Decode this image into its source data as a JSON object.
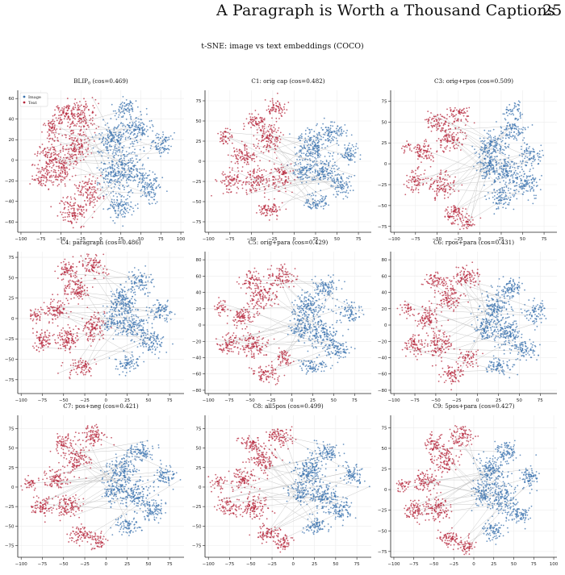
{
  "header": {
    "title": "A Paragraph is Worth a Thousand Captions",
    "page_number": "25"
  },
  "figure": {
    "title": "t-SNE: image vs text embeddings (COCO)"
  },
  "legend": {
    "image_label": "Image",
    "text_label": "Text"
  },
  "colors": {
    "image": "#3a72ad",
    "text": "#b5253b",
    "link": "#bdbdbd",
    "grid": "#ececec",
    "axis": "#222222"
  },
  "chart_data": [
    {
      "type": "scatter",
      "title_main": "BLIP",
      "title_sub": "0",
      "title_rest": " (cos=0.469)",
      "xticks": [
        -100,
        -75,
        -50,
        -25,
        0,
        25,
        50,
        75,
        100
      ],
      "yticks": [
        -60,
        -40,
        -20,
        0,
        20,
        40,
        60
      ],
      "xlim": [
        -104,
        104
      ],
      "ylim": [
        -70,
        68
      ],
      "legend": true,
      "clusters": {
        "text": [
          [
            -65,
            5,
            14,
            12
          ],
          [
            -75,
            -15,
            12,
            10
          ],
          [
            -50,
            -10,
            16,
            14
          ],
          [
            -30,
            15,
            16,
            16
          ],
          [
            -25,
            45,
            16,
            14
          ],
          [
            -45,
            45,
            14,
            10
          ],
          [
            -35,
            -50,
            18,
            12
          ],
          [
            -15,
            -30,
            14,
            14
          ],
          [
            -60,
            30,
            12,
            10
          ]
        ],
        "image": [
          [
            15,
            20,
            18,
            18
          ],
          [
            35,
            -10,
            18,
            18
          ],
          [
            45,
            30,
            16,
            14
          ],
          [
            60,
            -25,
            14,
            14
          ],
          [
            25,
            -45,
            16,
            12
          ],
          [
            75,
            15,
            12,
            12
          ],
          [
            15,
            -15,
            14,
            14
          ],
          [
            30,
            50,
            14,
            8
          ]
        ]
      }
    },
    {
      "type": "scatter",
      "title_main": "C1: orig cap (cos=0.482)",
      "title_sub": "",
      "title_rest": "",
      "xticks": [
        -100,
        -75,
        -50,
        -25,
        0,
        25,
        50,
        75
      ],
      "yticks": [
        -75,
        -50,
        -25,
        0,
        25,
        50,
        75
      ],
      "xlim": [
        -104,
        90
      ],
      "ylim": [
        -88,
        88
      ],
      "legend": false,
      "clusters": {
        "text": [
          [
            -60,
            5,
            14,
            12
          ],
          [
            -75,
            -25,
            12,
            12
          ],
          [
            -45,
            -25,
            14,
            14
          ],
          [
            -30,
            30,
            14,
            16
          ],
          [
            -20,
            65,
            12,
            10
          ],
          [
            -45,
            50,
            12,
            10
          ],
          [
            -30,
            -60,
            14,
            10
          ],
          [
            -15,
            -20,
            12,
            14
          ],
          [
            -80,
            30,
            8,
            10
          ]
        ],
        "image": [
          [
            20,
            20,
            16,
            18
          ],
          [
            35,
            -10,
            16,
            16
          ],
          [
            45,
            35,
            14,
            12
          ],
          [
            55,
            -30,
            12,
            12
          ],
          [
            25,
            -50,
            14,
            10
          ],
          [
            65,
            10,
            10,
            12
          ],
          [
            10,
            -10,
            12,
            14
          ]
        ]
      }
    },
    {
      "type": "scatter",
      "title_main": "C3: orig+rpos (cos=0.509)",
      "title_sub": "",
      "title_rest": "",
      "xticks": [
        -100,
        -75,
        -50,
        -25,
        0,
        25,
        50,
        75
      ],
      "yticks": [
        -75,
        -50,
        -25,
        0,
        25,
        50,
        75
      ],
      "xlim": [
        -104,
        90
      ],
      "ylim": [
        -82,
        88
      ],
      "legend": false,
      "clusters": {
        "text": [
          [
            -65,
            15,
            12,
            12
          ],
          [
            -75,
            -20,
            10,
            12
          ],
          [
            -45,
            -25,
            14,
            14
          ],
          [
            -35,
            30,
            14,
            14
          ],
          [
            -25,
            60,
            12,
            10
          ],
          [
            -50,
            50,
            12,
            10
          ],
          [
            -30,
            -60,
            14,
            10
          ],
          [
            -15,
            -70,
            10,
            8
          ],
          [
            -85,
            20,
            6,
            6
          ]
        ],
        "image": [
          [
            15,
            20,
            16,
            18
          ],
          [
            30,
            -10,
            16,
            16
          ],
          [
            40,
            40,
            14,
            12
          ],
          [
            55,
            -25,
            14,
            14
          ],
          [
            25,
            -40,
            14,
            12
          ],
          [
            60,
            10,
            12,
            12
          ],
          [
            10,
            -5,
            12,
            14
          ],
          [
            40,
            65,
            10,
            8
          ]
        ]
      }
    },
    {
      "type": "scatter",
      "title_main": "C4: paragraph (cos=0.486)",
      "title_sub": "",
      "title_rest": "",
      "xticks": [
        -100,
        -75,
        -50,
        -25,
        0,
        25,
        50,
        75
      ],
      "yticks": [
        -75,
        -50,
        -25,
        0,
        25,
        50,
        75
      ],
      "xlim": [
        -104,
        92
      ],
      "ylim": [
        -92,
        82
      ],
      "legend": false,
      "clusters": {
        "text": [
          [
            -60,
            10,
            14,
            12
          ],
          [
            -75,
            -25,
            12,
            12
          ],
          [
            -45,
            -25,
            14,
            14
          ],
          [
            -35,
            35,
            14,
            14
          ],
          [
            -15,
            65,
            14,
            12
          ],
          [
            -45,
            60,
            12,
            10
          ],
          [
            -30,
            -60,
            14,
            10
          ],
          [
            -15,
            -10,
            12,
            16
          ],
          [
            -85,
            5,
            8,
            8
          ]
        ],
        "image": [
          [
            20,
            20,
            16,
            18
          ],
          [
            35,
            -10,
            16,
            16
          ],
          [
            40,
            45,
            14,
            12
          ],
          [
            55,
            -30,
            14,
            12
          ],
          [
            25,
            -55,
            14,
            10
          ],
          [
            65,
            10,
            12,
            12
          ],
          [
            10,
            -5,
            12,
            14
          ]
        ]
      }
    },
    {
      "type": "scatter",
      "title_main": "C5: orig+para (cos=0.429)",
      "title_sub": "",
      "title_rest": "",
      "xticks": [
        -100,
        -75,
        -50,
        -25,
        0,
        25,
        50,
        75
      ],
      "yticks": [
        -80,
        -60,
        -40,
        -20,
        0,
        20,
        40,
        60,
        80
      ],
      "xlim": [
        -104,
        95
      ],
      "ylim": [
        -84,
        90
      ],
      "legend": false,
      "clusters": {
        "text": [
          [
            -60,
            10,
            14,
            12
          ],
          [
            -75,
            -25,
            12,
            12
          ],
          [
            -45,
            -25,
            14,
            14
          ],
          [
            -35,
            35,
            14,
            14
          ],
          [
            -15,
            60,
            14,
            12
          ],
          [
            -50,
            55,
            12,
            10
          ],
          [
            -30,
            -60,
            14,
            10
          ],
          [
            -10,
            -40,
            10,
            10
          ],
          [
            -85,
            20,
            8,
            8
          ]
        ],
        "image": [
          [
            20,
            20,
            16,
            18
          ],
          [
            35,
            -10,
            16,
            16
          ],
          [
            40,
            45,
            14,
            12
          ],
          [
            55,
            -30,
            14,
            12
          ],
          [
            25,
            -50,
            14,
            10
          ],
          [
            70,
            15,
            12,
            12
          ],
          [
            10,
            -5,
            12,
            14
          ]
        ]
      }
    },
    {
      "type": "scatter",
      "title_main": "C6: rpos+para (cos=0.431)",
      "title_sub": "",
      "title_rest": "",
      "xticks": [
        -100,
        -75,
        -50,
        -25,
        0,
        25,
        50,
        75
      ],
      "yticks": [
        -80,
        -60,
        -40,
        -20,
        0,
        20,
        40,
        60,
        80
      ],
      "xlim": [
        -104,
        95
      ],
      "ylim": [
        -84,
        90
      ],
      "legend": false,
      "clusters": {
        "text": [
          [
            -60,
            10,
            14,
            12
          ],
          [
            -75,
            -25,
            12,
            12
          ],
          [
            -45,
            -25,
            14,
            14
          ],
          [
            -35,
            35,
            14,
            14
          ],
          [
            -15,
            60,
            14,
            12
          ],
          [
            -50,
            55,
            12,
            10
          ],
          [
            -30,
            -60,
            14,
            10
          ],
          [
            -10,
            -40,
            10,
            10
          ],
          [
            -85,
            20,
            8,
            8
          ]
        ],
        "image": [
          [
            20,
            20,
            16,
            18
          ],
          [
            35,
            -10,
            16,
            16
          ],
          [
            40,
            45,
            14,
            12
          ],
          [
            55,
            -30,
            14,
            12
          ],
          [
            25,
            -50,
            14,
            10
          ],
          [
            70,
            15,
            12,
            12
          ],
          [
            10,
            -5,
            12,
            14
          ]
        ]
      }
    },
    {
      "type": "scatter",
      "title_main": "C7: pos+neg (cos=0.421)",
      "title_sub": "",
      "title_rest": "",
      "xticks": [
        -100,
        -75,
        -50,
        -25,
        0,
        25,
        50,
        75
      ],
      "yticks": [
        -75,
        -50,
        -25,
        0,
        25,
        50,
        75
      ],
      "xlim": [
        -104,
        92
      ],
      "ylim": [
        -90,
        92
      ],
      "legend": false,
      "clusters": {
        "text": [
          [
            -60,
            10,
            14,
            12
          ],
          [
            -75,
            -25,
            12,
            12
          ],
          [
            -45,
            -25,
            14,
            14
          ],
          [
            -35,
            35,
            14,
            14
          ],
          [
            -15,
            65,
            14,
            12
          ],
          [
            -50,
            55,
            12,
            10
          ],
          [
            -30,
            -60,
            14,
            10
          ],
          [
            -10,
            -70,
            10,
            10
          ],
          [
            -90,
            5,
            8,
            8
          ]
        ],
        "image": [
          [
            20,
            20,
            16,
            18
          ],
          [
            35,
            -10,
            16,
            16
          ],
          [
            40,
            45,
            14,
            12
          ],
          [
            55,
            -30,
            14,
            12
          ],
          [
            25,
            -50,
            14,
            10
          ],
          [
            70,
            15,
            12,
            12
          ],
          [
            10,
            -5,
            12,
            14
          ]
        ]
      }
    },
    {
      "type": "scatter",
      "title_main": "C8: all5pos (cos=0.499)",
      "title_sub": "",
      "title_rest": "",
      "xticks": [
        -100,
        -75,
        -50,
        -25,
        0,
        25,
        50,
        75
      ],
      "yticks": [
        -75,
        -50,
        -25,
        0,
        25,
        50,
        75
      ],
      "xlim": [
        -104,
        92
      ],
      "ylim": [
        -90,
        92
      ],
      "legend": false,
      "clusters": {
        "text": [
          [
            -60,
            10,
            14,
            12
          ],
          [
            -75,
            -25,
            12,
            12
          ],
          [
            -45,
            -25,
            14,
            14
          ],
          [
            -35,
            35,
            14,
            14
          ],
          [
            -15,
            65,
            14,
            12
          ],
          [
            -50,
            55,
            12,
            10
          ],
          [
            -30,
            -60,
            14,
            10
          ],
          [
            -10,
            -70,
            10,
            10
          ],
          [
            -90,
            5,
            8,
            8
          ]
        ],
        "image": [
          [
            20,
            20,
            16,
            18
          ],
          [
            35,
            -10,
            16,
            16
          ],
          [
            40,
            45,
            14,
            12
          ],
          [
            55,
            -30,
            14,
            12
          ],
          [
            25,
            -50,
            14,
            10
          ],
          [
            70,
            15,
            12,
            12
          ],
          [
            10,
            -5,
            12,
            14
          ]
        ]
      }
    },
    {
      "type": "scatter",
      "title_main": "C9: 5pos+para (cos=0.427)",
      "title_sub": "",
      "title_rest": "",
      "xticks": [
        -100,
        -75,
        -50,
        -25,
        0,
        25,
        50,
        75,
        100
      ],
      "yticks": [
        -75,
        -50,
        -25,
        0,
        25,
        50,
        75
      ],
      "xlim": [
        -104,
        104
      ],
      "ylim": [
        -82,
        90
      ],
      "legend": false,
      "clusters": {
        "text": [
          [
            -60,
            10,
            14,
            12
          ],
          [
            -75,
            -25,
            12,
            12
          ],
          [
            -45,
            -25,
            14,
            14
          ],
          [
            -35,
            35,
            14,
            14
          ],
          [
            -15,
            65,
            14,
            12
          ],
          [
            -50,
            55,
            12,
            10
          ],
          [
            -30,
            -60,
            14,
            10
          ],
          [
            -10,
            -70,
            10,
            10
          ],
          [
            -90,
            5,
            8,
            8
          ]
        ],
        "image": [
          [
            20,
            20,
            16,
            18
          ],
          [
            35,
            -10,
            16,
            16
          ],
          [
            40,
            45,
            14,
            12
          ],
          [
            55,
            -30,
            14,
            12
          ],
          [
            25,
            -50,
            14,
            10
          ],
          [
            70,
            15,
            12,
            12
          ],
          [
            10,
            -5,
            12,
            14
          ]
        ]
      }
    }
  ]
}
